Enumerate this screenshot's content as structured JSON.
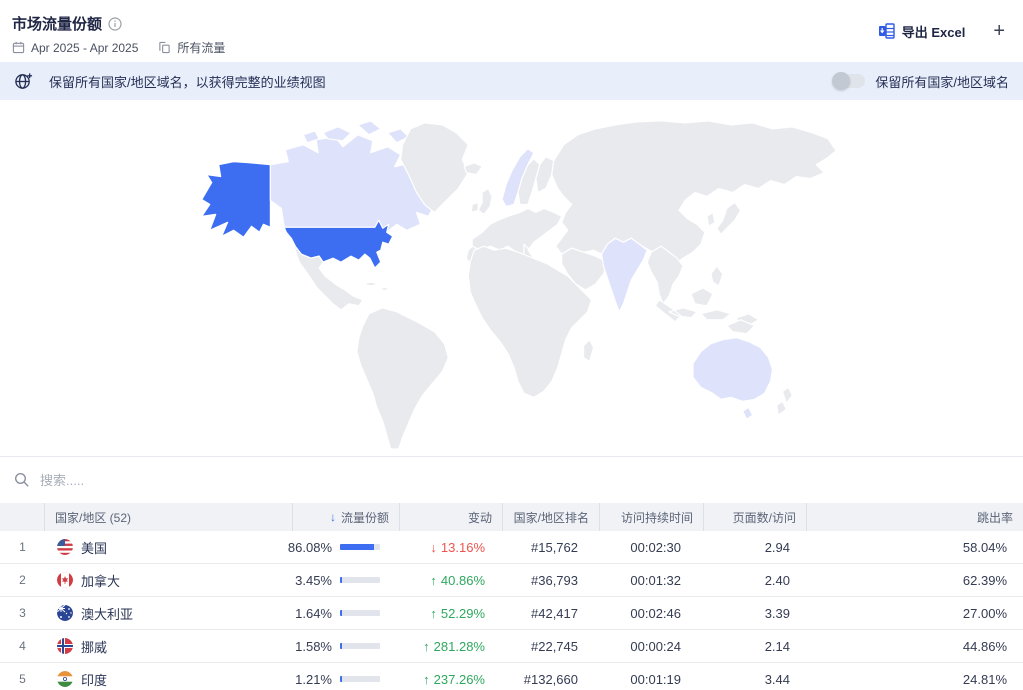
{
  "colors": {
    "accent": "#3d6ef2",
    "negative": "#ef5350",
    "positive": "#2fa85f",
    "banner_bg": "#e9effa"
  },
  "header": {
    "title": "市场流量份额",
    "date_range": "Apr 2025 - Apr 2025",
    "traffic_filter": "所有流量",
    "export_label": "导出 Excel",
    "add_label": "+"
  },
  "banner": {
    "message": "保留所有国家/地区域名，以获得完整的业绩视图",
    "toggle_label": "保留所有国家/地区域名",
    "toggle_state": "off"
  },
  "map": {
    "colors": {
      "full": "#3d6ef2",
      "light": "#dee3fb",
      "base": "#e9eaee"
    },
    "highlight_full": [
      "美国"
    ],
    "highlight_light": [
      "加拿大",
      "挪威",
      "印度",
      "澳大利亚"
    ]
  },
  "search": {
    "placeholder": "搜索....."
  },
  "table": {
    "columns": {
      "rank": "",
      "country": "国家/地区 (52)",
      "share": "流量份额",
      "change": "变动",
      "country_rank": "国家/地区排名",
      "duration": "访问持续时间",
      "pages_per_visit": "页面数/访问",
      "bounce_rate": "跳出率"
    },
    "sort_column": "流量份额",
    "sort_arrow": "↓",
    "rows": [
      {
        "rank": "1",
        "country": "美国",
        "share": "86.08%",
        "share_value": 86.08,
        "change_arrow": "↓",
        "direction": "down",
        "change": "13.16%",
        "country_rank": "#15,762",
        "duration": "00:02:30",
        "pages": "2.94",
        "bounce": "58.04%"
      },
      {
        "rank": "2",
        "country": "加拿大",
        "share": "3.45%",
        "share_value": 3.45,
        "change_arrow": "↑",
        "direction": "up",
        "change": "40.86%",
        "country_rank": "#36,793",
        "duration": "00:01:32",
        "pages": "2.40",
        "bounce": "62.39%"
      },
      {
        "rank": "3",
        "country": "澳大利亚",
        "share": "1.64%",
        "share_value": 1.64,
        "change_arrow": "↑",
        "direction": "up",
        "change": "52.29%",
        "country_rank": "#42,417",
        "duration": "00:02:46",
        "pages": "3.39",
        "bounce": "27.00%"
      },
      {
        "rank": "4",
        "country": "挪威",
        "share": "1.58%",
        "share_value": 1.58,
        "change_arrow": "↑",
        "direction": "up",
        "change": "281.28%",
        "country_rank": "#22,745",
        "duration": "00:00:24",
        "pages": "2.14",
        "bounce": "44.86%"
      },
      {
        "rank": "5",
        "country": "印度",
        "share": "1.21%",
        "share_value": 1.21,
        "change_arrow": "↑",
        "direction": "up",
        "change": "237.26%",
        "country_rank": "#132,660",
        "duration": "00:01:19",
        "pages": "3.44",
        "bounce": "24.81%"
      }
    ]
  }
}
